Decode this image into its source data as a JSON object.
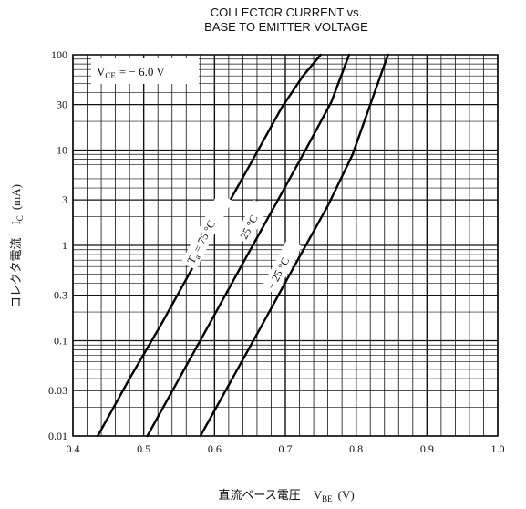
{
  "chart_data": {
    "type": "line",
    "title_line1": "COLLECTOR CURRENT vs.",
    "title_line2": "BASE TO EMITTER VOLTAGE",
    "xlabel_prefix": "直流ベース電圧",
    "xlabel_symbol": "V",
    "xlabel_sub": "BE",
    "xlabel_unit": "(V)",
    "ylabel_prefix": "コレクタ電流",
    "ylabel_symbol": "I",
    "ylabel_sub": "C",
    "ylabel_unit": "(mA)",
    "condition_symbol": "V",
    "condition_sub": "CE",
    "condition_value": "= − 6.0 V",
    "xlim": [
      0.4,
      1.0
    ],
    "ylim": [
      0.01,
      100
    ],
    "y_scale": "log",
    "grid": true,
    "x_ticks": [
      "0.4",
      "0.5",
      "0.6",
      "0.7",
      "0.8",
      "0.9",
      "1.0"
    ],
    "y_ticks": [
      {
        "value": 100,
        "label": "100"
      },
      {
        "value": 30,
        "label": "30"
      },
      {
        "value": 10,
        "label": "10"
      },
      {
        "value": 3,
        "label": "3"
      },
      {
        "value": 1,
        "label": "1"
      },
      {
        "value": 0.3,
        "label": "0.3"
      },
      {
        "value": 0.1,
        "label": "0.1"
      },
      {
        "value": 0.03,
        "label": "0.03"
      },
      {
        "value": 0.01,
        "label": "0.01"
      }
    ],
    "series": [
      {
        "name": "Ta = 75 °C",
        "label_symbol": "T",
        "label_sub": "a",
        "label_rest": " = 75 °C",
        "x": [
          0.435,
          0.48,
          0.525,
          0.57,
          0.615,
          0.66,
          0.695,
          0.725,
          0.75
        ],
        "y": [
          0.01,
          0.04,
          0.15,
          0.6,
          2.4,
          9.5,
          28,
          60,
          100
        ]
      },
      {
        "name": "25 °C",
        "label_symbol": "",
        "label_sub": "",
        "label_rest": "25 °C",
        "x": [
          0.505,
          0.55,
          0.595,
          0.64,
          0.685,
          0.73,
          0.765,
          0.79
        ],
        "y": [
          0.01,
          0.04,
          0.16,
          0.65,
          2.6,
          10.5,
          32,
          100
        ]
      },
      {
        "name": "−25 °C",
        "label_symbol": "",
        "label_sub": "",
        "label_rest": "− 25 °C",
        "x": [
          0.58,
          0.625,
          0.67,
          0.715,
          0.76,
          0.795,
          0.82,
          0.845
        ],
        "y": [
          0.01,
          0.04,
          0.16,
          0.65,
          2.6,
          9,
          30,
          100
        ]
      }
    ]
  }
}
